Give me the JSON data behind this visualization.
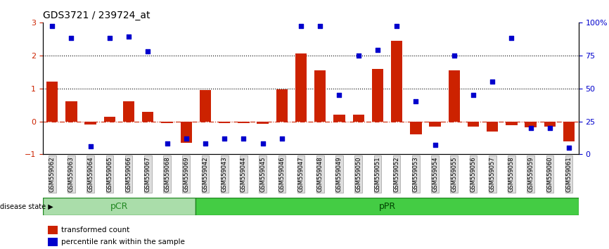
{
  "title": "GDS3721 / 239724_at",
  "samples": [
    "GSM559062",
    "GSM559063",
    "GSM559064",
    "GSM559065",
    "GSM559066",
    "GSM559067",
    "GSM559068",
    "GSM559069",
    "GSM559042",
    "GSM559043",
    "GSM559044",
    "GSM559045",
    "GSM559046",
    "GSM559047",
    "GSM559048",
    "GSM559049",
    "GSM559050",
    "GSM559051",
    "GSM559052",
    "GSM559053",
    "GSM559054",
    "GSM559055",
    "GSM559056",
    "GSM559057",
    "GSM559058",
    "GSM559059",
    "GSM559060",
    "GSM559061"
  ],
  "transformed_count": [
    1.2,
    0.6,
    -0.1,
    0.15,
    0.6,
    0.3,
    -0.05,
    -0.65,
    0.95,
    -0.05,
    -0.05,
    -0.08,
    0.97,
    2.05,
    1.55,
    0.2,
    0.2,
    1.6,
    2.45,
    -0.4,
    -0.15,
    1.55,
    -0.15,
    -0.3,
    -0.12,
    -0.18,
    -0.15,
    -0.6
  ],
  "percentile_rank": [
    97,
    88,
    6,
    88,
    89,
    78,
    8,
    12,
    8,
    12,
    12,
    8,
    12,
    97,
    97,
    45,
    75,
    79,
    97,
    40,
    7,
    75,
    45,
    55,
    88,
    20,
    20,
    5
  ],
  "pcr_count": 8,
  "ppr_count": 20,
  "ylim_left": [
    -1,
    3
  ],
  "ylim_right": [
    0,
    100
  ],
  "yticks_left": [
    -1,
    0,
    1,
    2,
    3
  ],
  "yticks_right": [
    0,
    25,
    50,
    75,
    100
  ],
  "bar_color": "#cc2200",
  "scatter_color": "#0000cc",
  "zero_line_color": "#cc2200",
  "dotted_line_color": "#000000",
  "pcr_color": "#aaddaa",
  "ppr_color": "#44cc44",
  "bar_width": 0.6,
  "legend_items": [
    "transformed count",
    "percentile rank within the sample"
  ]
}
